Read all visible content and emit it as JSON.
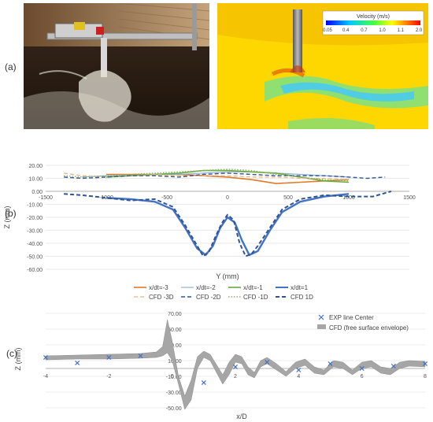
{
  "panel_labels": {
    "a": "(a)",
    "b": "(b)",
    "c": "(c)"
  },
  "colorbar": {
    "title": "Velocity (m/s)",
    "ticks": [
      "0.05",
      "0.4",
      "0.7",
      "1.0",
      "1.1",
      "2.0"
    ]
  },
  "colors": {
    "exp_m3": "#e07a2b",
    "exp_m2": "#8fb0d6",
    "exp_m1": "#6aac3e",
    "exp_p1": "#4472c4",
    "cfd_m3": "#f0b27a",
    "cfd_m2": "#2f5597",
    "cfd_m1": "#8bb36a",
    "cfd_p1": "#2f5597",
    "marker": "#4472c4",
    "envelope": "#a6a6a6"
  },
  "chart_data": [
    {
      "type": "line",
      "xlabel": "Y (mm)",
      "ylabel": "Z (mm)",
      "xlim": [
        -1500,
        1500
      ],
      "ylim": [
        -60,
        20
      ],
      "xticks": [
        -1500,
        -1000,
        -500,
        0,
        500,
        1000,
        1500
      ],
      "yticks": [
        "20.00",
        "10.00",
        "0.00",
        "-10.00",
        "-20.00",
        "-30.00",
        "-40.00",
        "-50.00",
        "-60.00"
      ],
      "ytick_values": [
        20,
        10,
        0,
        -10,
        -20,
        -30,
        -40,
        -50,
        -60
      ],
      "legend_position": "bottom",
      "series": [
        {
          "name": "x/dt=-3",
          "style": "solid",
          "color_key": "exp_m3",
          "width": 1.6,
          "x": [
            -1000,
            -800,
            -600,
            -400,
            -200,
            0,
            200,
            400,
            600,
            800,
            1000
          ],
          "y": [
            13,
            13,
            13,
            13,
            12,
            11,
            9,
            6,
            7,
            8,
            9
          ]
        },
        {
          "name": "x/dt=-2",
          "style": "solid",
          "color_key": "exp_m2",
          "width": 1.2,
          "x": [
            -1200,
            -1000,
            -800,
            -600,
            -400,
            -200,
            0,
            200,
            400,
            600,
            800,
            1000
          ],
          "y": [
            11,
            12,
            12,
            13,
            13,
            14,
            15,
            15,
            14,
            13,
            12,
            11
          ]
        },
        {
          "name": "x/dt=-1",
          "style": "solid",
          "color_key": "exp_m1",
          "width": 1.6,
          "x": [
            -1000,
            -800,
            -600,
            -400,
            -200,
            0,
            200,
            400,
            600,
            800,
            1000
          ],
          "y": [
            11,
            12,
            13,
            14,
            16,
            16,
            15,
            14,
            11,
            8,
            7
          ]
        },
        {
          "name": "x/dt=1",
          "style": "solid",
          "color_key": "exp_p1",
          "width": 2.4,
          "x": [
            -1000,
            -800,
            -600,
            -450,
            -350,
            -250,
            -180,
            -120,
            -60,
            0,
            60,
            120,
            180,
            250,
            350,
            450,
            600,
            800,
            1000
          ],
          "y": [
            -5,
            -6,
            -8,
            -14,
            -28,
            -44,
            -49,
            -42,
            -28,
            -20,
            -24,
            -38,
            -49,
            -46,
            -30,
            -16,
            -8,
            -4,
            -2
          ]
        },
        {
          "name": "CFD -3D",
          "style": "dash",
          "color_key": "cfd_m3",
          "width": 1.2,
          "x": [
            -1350,
            -1200,
            -1000,
            -800,
            -600,
            -400,
            -200,
            0,
            200,
            400,
            600,
            800,
            1000
          ],
          "y": [
            14,
            12,
            11,
            12,
            13,
            12,
            12,
            12,
            11,
            11,
            10,
            10,
            9
          ]
        },
        {
          "name": "CFD -2D",
          "style": "dash",
          "color_key": "cfd_m2",
          "width": 1.4,
          "x": [
            -1350,
            -1200,
            -1000,
            -800,
            -600,
            -400,
            -200,
            0,
            200,
            400,
            600,
            800,
            1000,
            1150,
            1300
          ],
          "y": [
            11,
            10,
            11,
            12,
            12,
            11,
            13,
            14,
            13,
            12,
            12,
            12,
            11,
            10,
            11
          ]
        },
        {
          "name": "CFD -1D",
          "style": "dot",
          "color_key": "cfd_m1",
          "width": 1.4,
          "x": [
            -1350,
            -1200,
            -1000,
            -800,
            -600,
            -400,
            -200,
            0,
            200,
            400,
            600,
            800,
            1000
          ],
          "y": [
            12,
            11,
            12,
            13,
            14,
            15,
            16,
            17,
            16,
            13,
            11,
            9,
            8
          ]
        },
        {
          "name": "CFD 1D",
          "style": "dash",
          "color_key": "cfd_p1",
          "width": 2.0,
          "x": [
            -1350,
            -1200,
            -1000,
            -800,
            -600,
            -450,
            -350,
            -250,
            -200,
            -150,
            -100,
            -50,
            0,
            50,
            100,
            150,
            200,
            250,
            350,
            450,
            600,
            800,
            1000,
            1200,
            1350
          ],
          "y": [
            -2,
            -3,
            -5,
            -7,
            -6,
            -12,
            -26,
            -42,
            -50,
            -46,
            -35,
            -25,
            -18,
            -22,
            -40,
            -50,
            -48,
            -42,
            -28,
            -14,
            -6,
            -3,
            -4,
            -4,
            0
          ]
        }
      ]
    },
    {
      "type": "line",
      "xlabel": "x/D",
      "ylabel": "Z (mm)",
      "xlim": [
        -4,
        8
      ],
      "ylim": [
        -50,
        70
      ],
      "xticks": [
        "-4",
        "-2",
        "0",
        "2",
        "4",
        "6",
        "8"
      ],
      "xtick_values": [
        -4,
        -2,
        0,
        2,
        4,
        6,
        8
      ],
      "yticks": [
        "70.00",
        "50.00",
        "30.00",
        "10.00",
        "-10.00",
        "-30.00",
        "-50.00"
      ],
      "ytick_values": [
        70,
        50,
        30,
        10,
        -10,
        -30,
        -50
      ],
      "legend_position": "top-right",
      "series": [
        {
          "name": "EXP line Center",
          "style": "markers",
          "color_key": "marker",
          "x": [
            -4,
            -3,
            -2,
            -1,
            1,
            2,
            3,
            4,
            5,
            6,
            7,
            8
          ],
          "y": [
            14,
            7,
            14,
            16,
            -18,
            2,
            8,
            -2,
            6,
            0,
            3,
            6
          ]
        },
        {
          "name": "CFD (free surface envelope)",
          "style": "band",
          "color_key": "envelope",
          "x": [
            -4,
            -3,
            -2,
            -1,
            -0.5,
            -0.3,
            -0.15,
            0,
            0.2,
            0.4,
            0.6,
            0.8,
            1.0,
            1.2,
            1.4,
            1.6,
            1.8,
            2.0,
            2.2,
            2.4,
            2.6,
            2.8,
            3.0,
            3.3,
            3.6,
            3.9,
            4.2,
            4.5,
            4.8,
            5.1,
            5.4,
            5.7,
            6.0,
            6.3,
            6.6,
            6.9,
            7.2,
            7.5,
            8
          ],
          "upper": [
            16,
            17,
            18,
            19,
            21,
            28,
            62,
            35,
            -10,
            -35,
            -15,
            15,
            22,
            18,
            5,
            -8,
            8,
            18,
            15,
            2,
            -5,
            10,
            14,
            6,
            -4,
            8,
            12,
            2,
            -2,
            10,
            8,
            -2,
            8,
            10,
            2,
            0,
            8,
            10,
            9
          ],
          "lower": [
            11,
            12,
            12,
            13,
            14,
            16,
            20,
            10,
            -20,
            -52,
            -40,
            0,
            14,
            10,
            -5,
            -20,
            -8,
            8,
            6,
            -8,
            -12,
            2,
            6,
            -2,
            -10,
            0,
            4,
            -6,
            -8,
            2,
            0,
            -8,
            0,
            2,
            -6,
            -8,
            0,
            3,
            2
          ]
        }
      ]
    }
  ]
}
